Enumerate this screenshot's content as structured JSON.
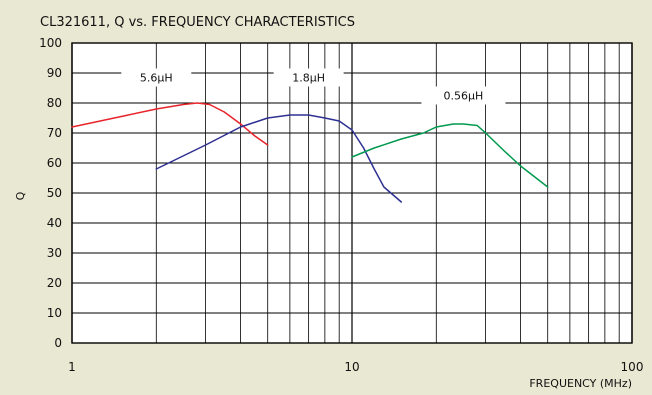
{
  "chart_data": {
    "type": "line",
    "title": "CL321611, Q vs. FREQUENCY CHARACTERISTICS",
    "xlabel": "FREQUENCY (MHz)",
    "ylabel": "Q",
    "xscale": "log",
    "xlim": [
      1,
      100
    ],
    "ylim": [
      0,
      100
    ],
    "xticks": [
      {
        "value": 1,
        "label": "1"
      },
      {
        "value": 10,
        "label": "10"
      },
      {
        "value": 100,
        "label": "100"
      }
    ],
    "yticks": [
      {
        "value": 0,
        "label": "0"
      },
      {
        "value": 10,
        "label": "10"
      },
      {
        "value": 20,
        "label": "20"
      },
      {
        "value": 30,
        "label": "30"
      },
      {
        "value": 40,
        "label": "40"
      },
      {
        "value": 50,
        "label": "50"
      },
      {
        "value": 60,
        "label": "60"
      },
      {
        "value": 70,
        "label": "70"
      },
      {
        "value": 80,
        "label": "80"
      },
      {
        "value": 90,
        "label": "90"
      },
      {
        "value": 100,
        "label": "100"
      }
    ],
    "grid": true,
    "series": [
      {
        "name": "5.6μH",
        "color": "#e8242b",
        "x": [
          1,
          1.5,
          2,
          2.5,
          2.8,
          3.1,
          3.5,
          4,
          4.5,
          5
        ],
        "y": [
          72,
          75.5,
          78,
          79.5,
          80,
          79.5,
          77,
          73,
          69,
          66
        ]
      },
      {
        "name": "1.8μH",
        "color": "#2e3192",
        "x": [
          2,
          3,
          4,
          5,
          6,
          7,
          8,
          9,
          10,
          11,
          12,
          13,
          15
        ],
        "y": [
          58,
          66,
          72,
          75,
          76,
          76,
          75,
          74,
          71,
          65,
          58,
          52,
          47
        ]
      },
      {
        "name": "0.56μH",
        "color": "#009a4e",
        "x": [
          10,
          12,
          15,
          18,
          20,
          23,
          25,
          28,
          30,
          35,
          40,
          50
        ],
        "y": [
          62,
          65,
          68,
          70,
          72,
          73,
          73,
          72.5,
          70,
          64,
          59,
          52
        ]
      }
    ]
  }
}
